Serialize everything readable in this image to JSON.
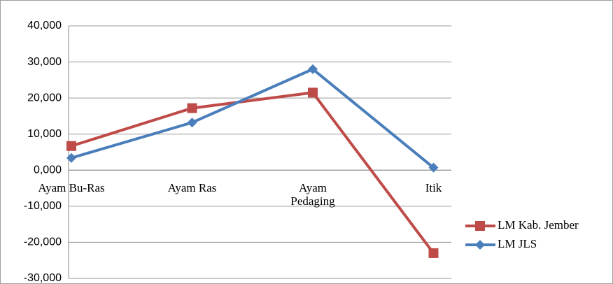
{
  "chart_data": {
    "type": "line",
    "categories": [
      "Ayam Bu-Ras",
      "Ayam Ras",
      "Ayam Pedaging",
      "Itik"
    ],
    "series": [
      {
        "name": "LM Kab. Jember",
        "color": "#be4b48",
        "marker": "square",
        "values": [
          6700,
          17200,
          21500,
          -23000
        ]
      },
      {
        "name": "LM JLS",
        "color": "#4a7ebb",
        "marker": "diamond",
        "values": [
          3400,
          13200,
          28000,
          700
        ]
      }
    ],
    "ylim": [
      -30000,
      40000
    ],
    "yticks": [
      {
        "value": -30000,
        "label": "-30,000"
      },
      {
        "value": -20000,
        "label": "-20,000"
      },
      {
        "value": -10000,
        "label": "-10,000"
      },
      {
        "value": 0,
        "label": "0,000"
      },
      {
        "value": 10000,
        "label": "10,000"
      },
      {
        "value": 20000,
        "label": "20,000"
      },
      {
        "value": 30000,
        "label": "30,000"
      },
      {
        "value": 40000,
        "label": "40,000"
      }
    ],
    "grid": true,
    "legend": "right"
  }
}
